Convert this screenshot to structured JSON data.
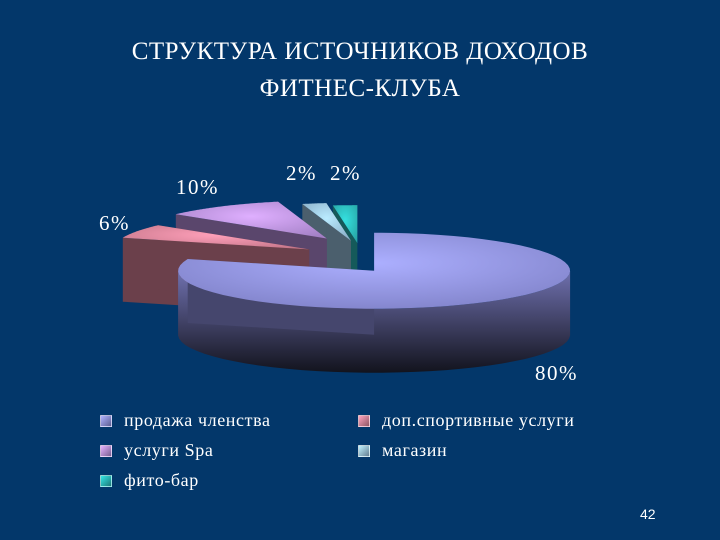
{
  "slide": {
    "title_line1": "СТРУКТУРА  ИСТОЧНИКОВ  ДОХОДОВ",
    "title_line2": "ФИТНЕС-КЛУБА",
    "page_number": "42"
  },
  "chart_data": {
    "type": "pie",
    "title": "СТРУКТУРА  ИСТОЧНИКОВ  ДОХОДОВ ФИТНЕС-КЛУБА",
    "style": "3d-exploded",
    "legend_position": "bottom",
    "slices": [
      {
        "name": "продажа членства",
        "value": 80,
        "label": "80%",
        "color": "#9a9cf2"
      },
      {
        "name": "доп.спортивные услуги",
        "value": 6,
        "label": "6%",
        "color": "#ee8fa6"
      },
      {
        "name": "услуги Spa",
        "value": 10,
        "label": "10%",
        "color": "#c79cf0"
      },
      {
        "name": "магазин",
        "value": 2,
        "label": "2%",
        "color": "#a6d2f2"
      },
      {
        "name": "фито-бар",
        "value": 2,
        "label": "2%",
        "color": "#2fc8c8"
      }
    ]
  }
}
